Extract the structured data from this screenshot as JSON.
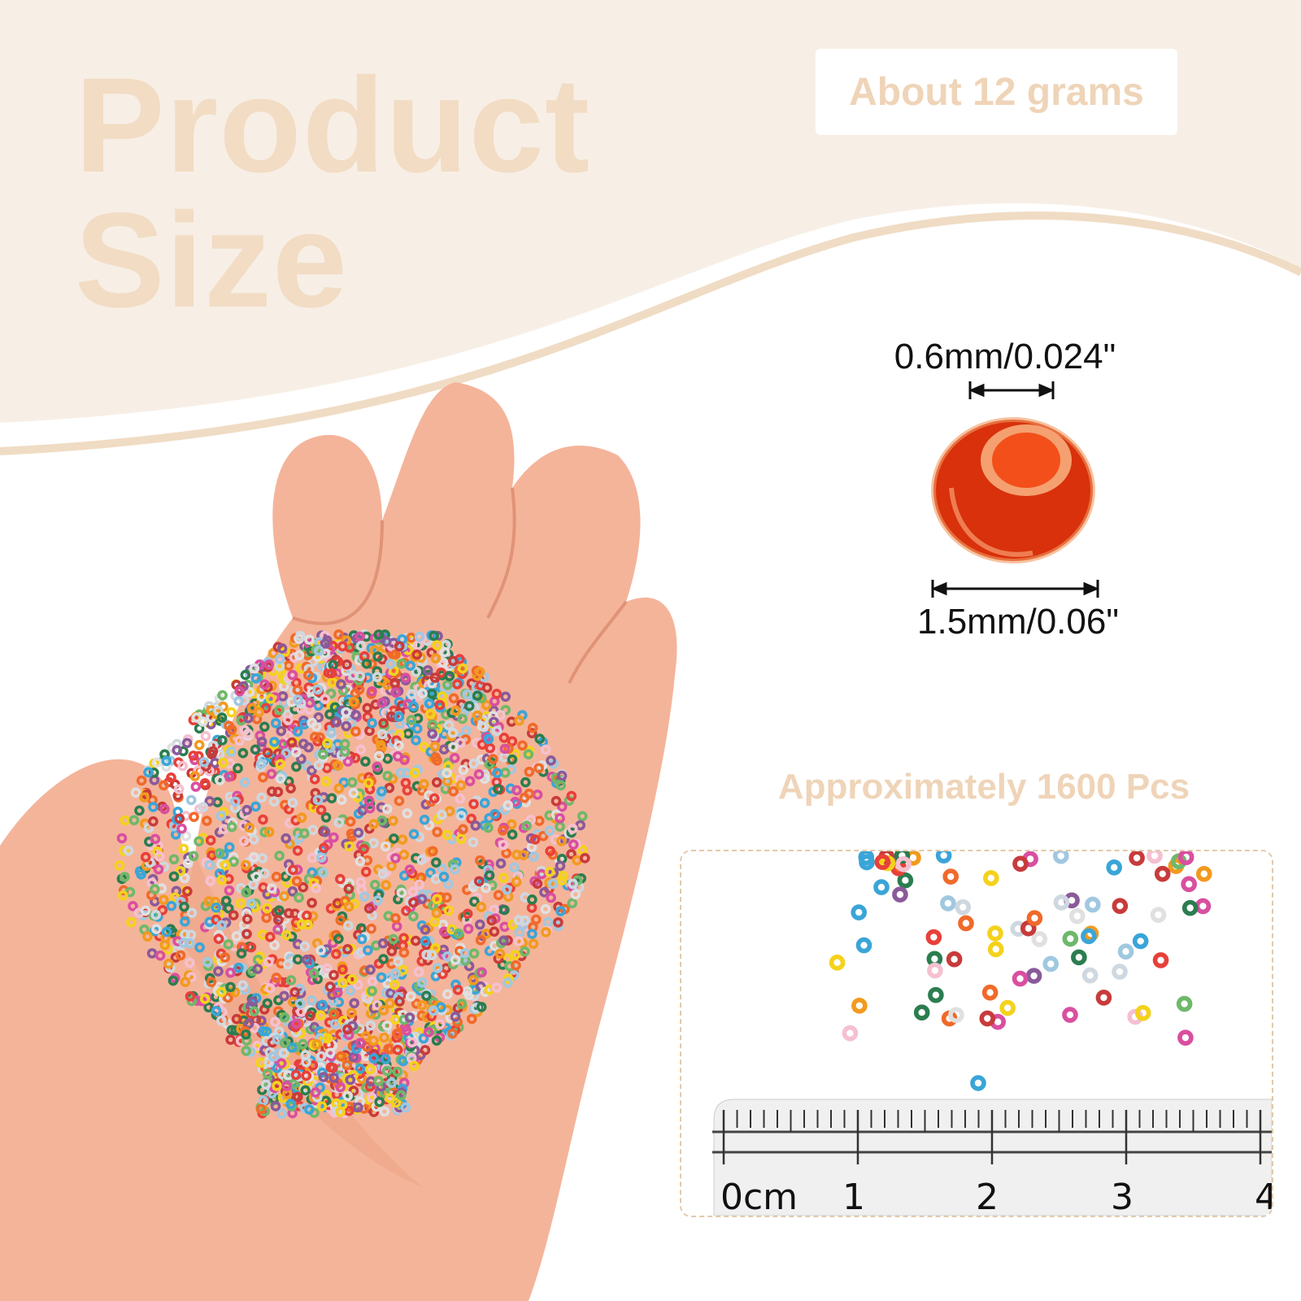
{
  "title_line1": "Product",
  "title_line2": "Size",
  "weight_badge": "About 12 grams",
  "hole_diameter": "0.6mm/0.024\"",
  "outer_diameter": "1.5mm/0.06\"",
  "quantity": "Approximately 1600 Pcs",
  "ruler": {
    "labels": [
      "0cm",
      "1",
      "2",
      "3",
      "4"
    ]
  },
  "colors": {
    "band": "#f7efe6",
    "accent": "#efd4b8",
    "bead": "#e03a10"
  }
}
